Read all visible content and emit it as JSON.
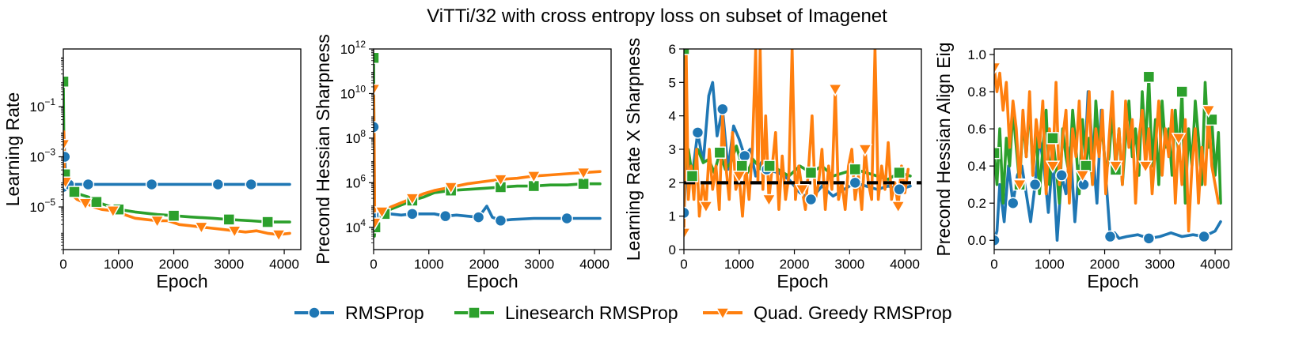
{
  "figure_title": "ViTTi/32 with cross entropy loss on subset of Imagenet",
  "colors": {
    "rmsprop": "#1f77b4",
    "linesearch": "#2ca02c",
    "quad": "#ff7f0e",
    "reference": "#000000"
  },
  "legend": [
    {
      "name": "RMSProp",
      "color": "#1f77b4",
      "marker": "circle"
    },
    {
      "name": "Linesearch RMSProp",
      "color": "#2ca02c",
      "marker": "square"
    },
    {
      "name": "Quad. Greedy RMSProp",
      "color": "#ff7f0e",
      "marker": "triangle-down"
    }
  ],
  "chart_data": [
    {
      "type": "line",
      "yscale": "log",
      "xlabel": "Epoch",
      "ylabel": "Learning Rate",
      "xlim": [
        0,
        4300
      ],
      "ylim_log10": [
        -6.7,
        1.3
      ],
      "xticks": [
        0,
        1000,
        2000,
        3000,
        4000
      ],
      "yticks": [
        {
          "exp": -5,
          "label": "10",
          "sup": "−5"
        },
        {
          "exp": -3,
          "label": "10",
          "sup": "−3"
        },
        {
          "exp": -1,
          "label": "10",
          "sup": "−1"
        }
      ],
      "series": [
        {
          "name": "RMSProp",
          "x": [
            0,
            10,
            25,
            40,
            60,
            100,
            200,
            450,
            1000,
            1600,
            2200,
            2800,
            3400,
            4100
          ],
          "y": [
            -4.2,
            -2.0,
            -3.0,
            -3.8,
            -4.05,
            -4.1,
            -4.1,
            -4.1,
            -4.1,
            -4.1,
            -4.1,
            -4.1,
            -4.1,
            -4.1
          ]
        },
        {
          "name": "Linesearch RMSProp",
          "x": [
            0,
            15,
            30,
            60,
            100,
            200,
            300,
            450,
            600,
            800,
            1000,
            1300,
            1700,
            2000,
            2300,
            2700,
            3000,
            3400,
            3700,
            4100
          ],
          "y": [
            0.0,
            -3.4,
            -3.7,
            -3.9,
            -4.2,
            -4.4,
            -4.5,
            -4.6,
            -4.8,
            -4.95,
            -5.1,
            -5.2,
            -5.3,
            -5.35,
            -5.4,
            -5.45,
            -5.5,
            -5.55,
            -5.6,
            -5.6
          ]
        },
        {
          "name": "Quad. Greedy RMSProp",
          "x": [
            0,
            10,
            20,
            40,
            80,
            150,
            250,
            400,
            550,
            700,
            900,
            1100,
            1300,
            1500,
            1700,
            1900,
            2100,
            2300,
            2500,
            2700,
            2900,
            3100,
            3300,
            3500,
            3700,
            3900,
            4100
          ],
          "y": [
            -2.5,
            -2.0,
            -3.8,
            -4.0,
            -4.2,
            -4.5,
            -4.7,
            -4.85,
            -5.0,
            -5.1,
            -5.15,
            -5.3,
            -5.45,
            -5.5,
            -5.55,
            -5.55,
            -5.7,
            -5.75,
            -5.8,
            -5.85,
            -5.9,
            -5.95,
            -6.0,
            -5.95,
            -6.05,
            -6.1,
            -6.05
          ]
        }
      ]
    },
    {
      "type": "line",
      "yscale": "log",
      "xlabel": "Epoch",
      "ylabel": "Precond Hessian Sharpness",
      "xlim": [
        0,
        4300
      ],
      "ylim_log10": [
        3.0,
        12.0
      ],
      "xticks": [
        0,
        1000,
        2000,
        3000,
        4000
      ],
      "yticks": [
        {
          "exp": 4,
          "label": "10",
          "sup": "4"
        },
        {
          "exp": 6,
          "label": "10",
          "sup": "6"
        },
        {
          "exp": 8,
          "label": "10",
          "sup": "8"
        },
        {
          "exp": 10,
          "label": "10",
          "sup": "10"
        },
        {
          "exp": 12,
          "label": "10",
          "sup": "12"
        }
      ],
      "series": [
        {
          "name": "RMSProp",
          "x": [
            0,
            10,
            20,
            40,
            80,
            150,
            300,
            500,
            700,
            900,
            1100,
            1300,
            1500,
            1700,
            1900,
            2050,
            2150,
            2300,
            2500,
            2900,
            3500,
            4100
          ],
          "y": [
            8.5,
            7.0,
            4.0,
            4.4,
            4.6,
            4.55,
            4.6,
            4.55,
            4.6,
            4.6,
            4.6,
            4.5,
            4.55,
            4.5,
            4.45,
            4.95,
            4.45,
            4.3,
            4.35,
            4.4,
            4.4,
            4.4
          ]
        },
        {
          "name": "Linesearch RMSProp",
          "x": [
            0,
            15,
            30,
            60,
            100,
            200,
            300,
            500,
            700,
            900,
            1100,
            1400,
            1700,
            2000,
            2300,
            2600,
            2900,
            3200,
            3500,
            3800,
            4100
          ],
          "y": [
            11.6,
            3.6,
            4.0,
            4.2,
            4.35,
            4.6,
            4.8,
            5.0,
            5.2,
            5.35,
            5.55,
            5.65,
            5.7,
            5.75,
            5.8,
            5.85,
            5.85,
            5.9,
            5.9,
            5.95,
            5.95
          ]
        },
        {
          "name": "Quad. Greedy RMSProp",
          "x": [
            0,
            10,
            20,
            40,
            80,
            150,
            300,
            500,
            700,
            900,
            1100,
            1400,
            1700,
            2000,
            2300,
            2600,
            2900,
            3200,
            3500,
            3800,
            4100
          ],
          "y": [
            10.2,
            8.0,
            4.2,
            4.5,
            4.6,
            4.7,
            4.9,
            5.1,
            5.3,
            5.5,
            5.65,
            5.8,
            5.95,
            6.05,
            6.15,
            6.2,
            6.3,
            6.35,
            6.4,
            6.45,
            6.5
          ]
        }
      ]
    },
    {
      "type": "line",
      "yscale": "linear",
      "xlabel": "Epoch",
      "ylabel": "Learning Rate X Sharpness",
      "xlim": [
        0,
        4300
      ],
      "ylim": [
        0,
        6
      ],
      "xticks": [
        0,
        1000,
        2000,
        3000,
        4000
      ],
      "yticks": [
        0,
        1,
        2,
        3,
        4,
        5,
        6
      ],
      "reference_line": {
        "y": 2,
        "style": "dashed",
        "color": "#000000"
      },
      "series": [
        {
          "name": "RMSProp",
          "x": [
            0,
            60,
            150,
            250,
            350,
            450,
            520,
            600,
            700,
            800,
            900,
            1000,
            1100,
            1200,
            1300,
            1400,
            1500,
            1700,
            1900,
            2100,
            2300,
            2500,
            2700,
            2900,
            3100,
            3300,
            3500,
            3700,
            3900,
            4100
          ],
          "y": [
            1.1,
            3.0,
            2.2,
            3.5,
            2.6,
            4.6,
            5.0,
            3.4,
            4.2,
            2.4,
            3.7,
            3.3,
            2.8,
            3.0,
            2.2,
            2.6,
            2.4,
            2.3,
            2.1,
            1.7,
            1.5,
            1.9,
            1.6,
            1.8,
            2.0,
            1.9,
            1.8,
            1.9,
            1.8,
            1.9
          ]
        },
        {
          "name": "Linesearch RMSProp",
          "x": [
            0,
            40,
            80,
            150,
            250,
            350,
            450,
            550,
            650,
            750,
            850,
            950,
            1050,
            1150,
            1250,
            1400,
            1550,
            1700,
            1900,
            2100,
            2300,
            2500,
            2700,
            2900,
            3100,
            3300,
            3500,
            3700,
            3900,
            4100
          ],
          "y": [
            6.0,
            2.5,
            3.0,
            2.2,
            3.0,
            2.6,
            2.7,
            2.3,
            2.9,
            2.4,
            2.6,
            3.1,
            2.5,
            2.3,
            2.7,
            2.4,
            2.5,
            2.4,
            2.2,
            2.5,
            2.3,
            2.5,
            2.2,
            2.3,
            2.4,
            2.3,
            2.2,
            2.1,
            2.3,
            2.2
          ]
        },
        {
          "name": "Quad. Greedy RMSProp",
          "x": [
            0,
            40,
            80,
            130,
            180,
            230,
            280,
            340,
            400,
            460,
            520,
            580,
            640,
            700,
            760,
            820,
            880,
            940,
            1000,
            1060,
            1120,
            1180,
            1240,
            1300,
            1340,
            1380,
            1430,
            1480,
            1540,
            1600,
            1660,
            1720,
            1780,
            1840,
            1900,
            1960,
            2020,
            2080,
            2140,
            2200,
            2260,
            2320,
            2380,
            2440,
            2500,
            2560,
            2620,
            2680,
            2740,
            2800,
            2860,
            2920,
            2980,
            3040,
            3100,
            3160,
            3220,
            3280,
            3340,
            3400,
            3460,
            3520,
            3580,
            3640,
            3700,
            3760,
            3820,
            3880,
            3940,
            4000,
            4060
          ],
          "y": [
            0.5,
            6.0,
            1.5,
            2.5,
            1.5,
            3.0,
            1.0,
            2.0,
            1.3,
            3.0,
            1.8,
            2.5,
            1.2,
            4.0,
            2.5,
            1.5,
            3.5,
            1.8,
            2.2,
            1.0,
            2.5,
            1.5,
            3.0,
            6.0,
            2.0,
            6.0,
            1.8,
            4.0,
            1.5,
            2.5,
            3.5,
            1.2,
            2.8,
            1.5,
            2.2,
            6.0,
            1.5,
            2.5,
            1.8,
            1.2,
            2.5,
            4.0,
            1.5,
            2.0,
            3.0,
            1.2,
            2.5,
            1.8,
            4.8,
            1.5,
            2.0,
            1.2,
            2.5,
            3.0,
            1.5,
            2.2,
            1.2,
            3.0,
            2.0,
            1.5,
            6.0,
            1.5,
            2.5,
            1.8,
            3.2,
            1.5,
            2.0,
            1.3,
            2.5,
            1.7,
            2.4
          ]
        }
      ]
    },
    {
      "type": "line",
      "yscale": "linear",
      "xlabel": "Epoch",
      "ylabel": "Precond Hessian Align Eig",
      "xlim": [
        0,
        4300
      ],
      "ylim": [
        -0.05,
        1.03
      ],
      "xticks": [
        0,
        1000,
        2000,
        3000,
        4000
      ],
      "yticks": [
        0.0,
        0.2,
        0.4,
        0.6,
        0.8,
        1.0
      ],
      "yticklabels": [
        "0.0",
        "0.2",
        "0.4",
        "0.6",
        "0.8",
        "1.0"
      ],
      "series": [
        {
          "name": "RMSProp",
          "x": [
            0,
            50,
            100,
            180,
            260,
            340,
            420,
            500,
            580,
            660,
            740,
            820,
            900,
            980,
            1060,
            1140,
            1220,
            1300,
            1380,
            1460,
            1540,
            1620,
            1700,
            1780,
            1860,
            1940,
            2020,
            2100,
            2180,
            2260,
            2400,
            2600,
            2800,
            3000,
            3200,
            3400,
            3600,
            3800,
            4000,
            4100
          ],
          "y": [
            0.0,
            0.05,
            0.3,
            0.1,
            0.4,
            0.2,
            0.35,
            0.4,
            0.25,
            0.1,
            0.3,
            0.55,
            0.4,
            0.15,
            0.45,
            0.0,
            0.35,
            0.25,
            0.5,
            0.1,
            0.4,
            0.3,
            0.8,
            0.5,
            0.2,
            0.7,
            0.35,
            0.02,
            0.04,
            0.01,
            0.02,
            0.03,
            0.01,
            0.02,
            0.04,
            0.02,
            0.03,
            0.02,
            0.05,
            0.1
          ]
        },
        {
          "name": "Linesearch RMSProp",
          "x": [
            0,
            50,
            100,
            160,
            220,
            280,
            340,
            400,
            460,
            520,
            580,
            640,
            700,
            760,
            820,
            880,
            940,
            1000,
            1060,
            1120,
            1180,
            1240,
            1300,
            1360,
            1420,
            1480,
            1540,
            1600,
            1660,
            1720,
            1780,
            1840,
            1900,
            1960,
            2020,
            2080,
            2140,
            2200,
            2260,
            2320,
            2380,
            2440,
            2500,
            2560,
            2620,
            2680,
            2740,
            2800,
            2860,
            2920,
            2980,
            3040,
            3100,
            3160,
            3220,
            3280,
            3340,
            3400,
            3460,
            3520,
            3580,
            3640,
            3700,
            3760,
            3820,
            3880,
            3940,
            4000,
            4060,
            4100
          ],
          "y": [
            0.47,
            0.3,
            0.6,
            0.2,
            0.55,
            0.4,
            0.7,
            0.5,
            0.3,
            0.65,
            0.45,
            0.75,
            0.35,
            0.6,
            0.25,
            0.5,
            0.7,
            0.3,
            0.55,
            0.4,
            0.2,
            0.6,
            0.45,
            0.35,
            0.7,
            0.5,
            0.25,
            0.65,
            0.4,
            0.55,
            0.3,
            0.75,
            0.5,
            0.6,
            0.35,
            0.45,
            0.7,
            0.38,
            0.6,
            0.3,
            0.55,
            0.75,
            0.45,
            0.6,
            0.35,
            0.8,
            0.5,
            0.88,
            0.4,
            0.65,
            0.3,
            0.75,
            0.5,
            0.6,
            0.35,
            0.7,
            0.45,
            0.8,
            0.2,
            0.6,
            0.4,
            0.75,
            0.55,
            0.3,
            0.85,
            0.5,
            0.65,
            0.35,
            0.58,
            0.2
          ]
        },
        {
          "name": "Quad. Greedy RMSProp",
          "x": [
            0,
            50,
            100,
            160,
            220,
            280,
            340,
            400,
            460,
            520,
            580,
            640,
            700,
            760,
            820,
            880,
            940,
            1000,
            1060,
            1120,
            1180,
            1240,
            1300,
            1360,
            1420,
            1480,
            1540,
            1600,
            1660,
            1720,
            1780,
            1840,
            1900,
            1960,
            2020,
            2080,
            2140,
            2200,
            2260,
            2320,
            2380,
            2440,
            2500,
            2560,
            2620,
            2680,
            2740,
            2800,
            2860,
            2920,
            2980,
            3040,
            3100,
            3160,
            3220,
            3280,
            3340,
            3400,
            3460,
            3520,
            3580,
            3640,
            3700,
            3760,
            3820,
            3880,
            3940,
            4000,
            4060
          ],
          "y": [
            0.93,
            0.8,
            0.9,
            0.7,
            0.85,
            0.5,
            0.75,
            0.6,
            0.3,
            0.7,
            0.45,
            0.8,
            0.35,
            0.65,
            0.5,
            0.75,
            0.25,
            0.6,
            0.4,
            0.85,
            0.3,
            0.55,
            0.7,
            0.2,
            0.6,
            0.45,
            0.75,
            0.35,
            0.5,
            0.8,
            0.3,
            0.6,
            0.45,
            0.7,
            0.25,
            0.55,
            0.8,
            0.4,
            0.6,
            0.3,
            0.75,
            0.5,
            0.65,
            0.2,
            0.55,
            0.7,
            0.4,
            0.6,
            0.25,
            0.5,
            0.75,
            0.35,
            0.6,
            0.45,
            0.7,
            0.2,
            0.55,
            0.3,
            0.65,
            0.05,
            0.4,
            0.6,
            0.2,
            0.5,
            0.3,
            0.7,
            0.4,
            0.3,
            0.2
          ]
        }
      ]
    }
  ]
}
